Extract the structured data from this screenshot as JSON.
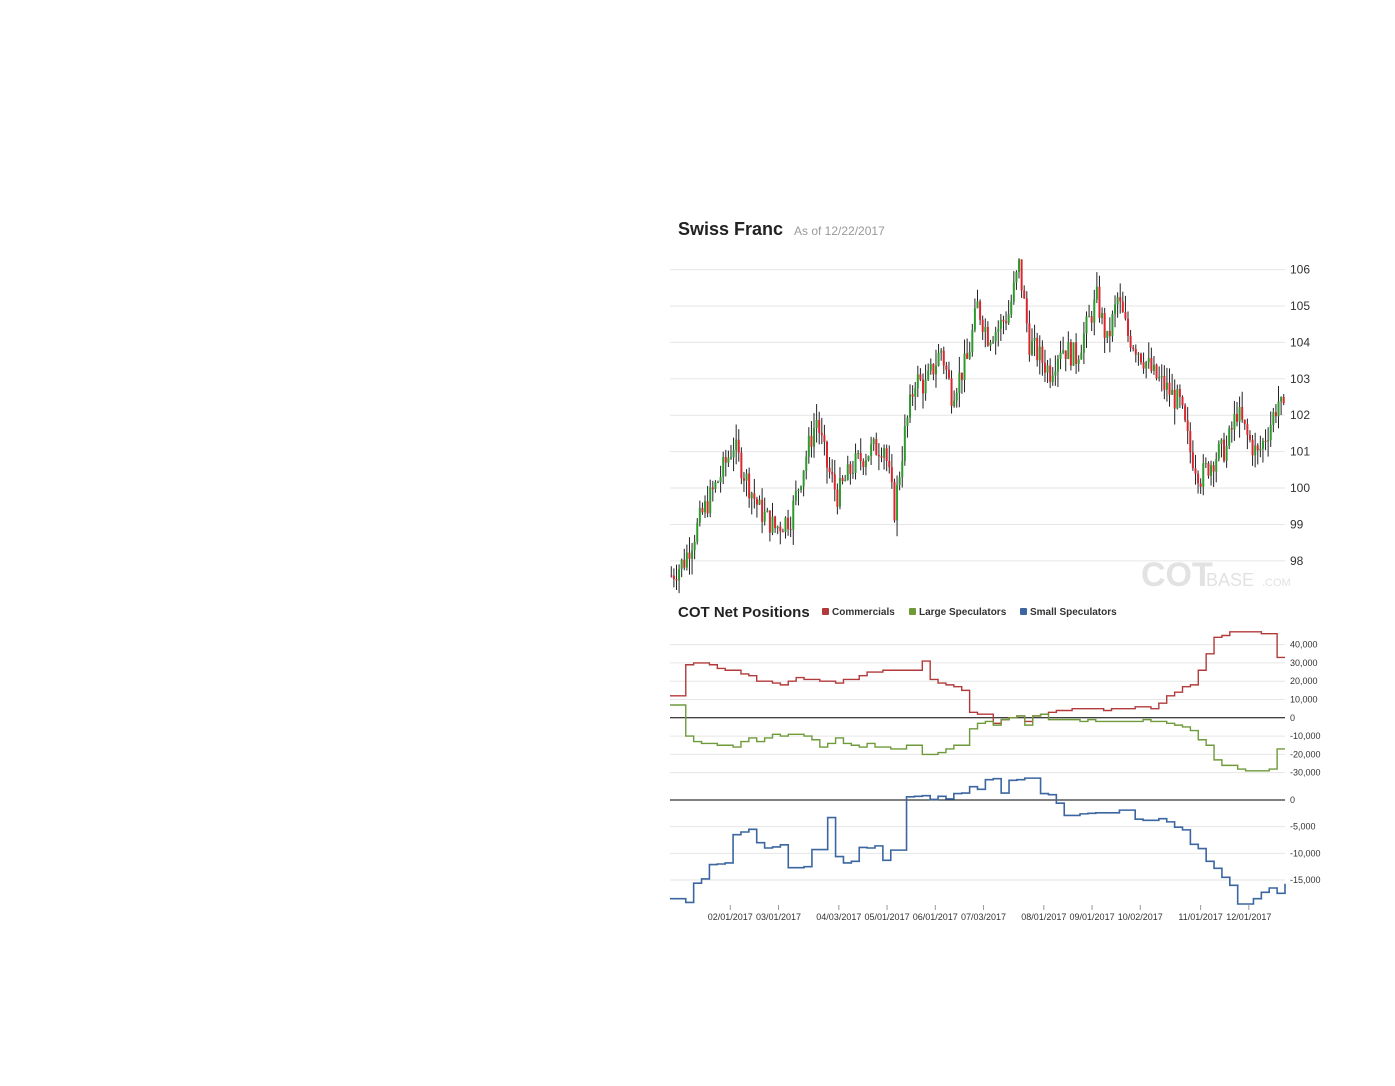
{
  "header": {
    "title": "Swiss Franc",
    "as_of": "As of 12/22/2017"
  },
  "watermark": {
    "main": "COT",
    "suffix": "BASE",
    "tld": ".COM"
  },
  "cot_panel": {
    "title": "COT Net Positions",
    "legend": [
      {
        "label": "Commercials",
        "color": "#b23a3a"
      },
      {
        "label": "Large Speculators",
        "color": "#6f9a3a"
      },
      {
        "label": "Small Speculators",
        "color": "#3b66a0"
      }
    ]
  },
  "colors": {
    "up": "#2e9a2e",
    "down": "#d9262f",
    "wick": "#222222",
    "grid": "#e6e6e6"
  },
  "chart_data": [
    {
      "type": "candlestick",
      "title": "Swiss Franc",
      "subtitle": "As of 12/22/2017",
      "y_ticks": [
        98,
        99,
        100,
        101,
        102,
        103,
        104,
        105,
        106
      ],
      "ylim": [
        97.2,
        106.4
      ],
      "anchors": [
        [
          0,
          97.6
        ],
        [
          5,
          98.0
        ],
        [
          12,
          99.3
        ],
        [
          18,
          100.2
        ],
        [
          24,
          101.2
        ],
        [
          28,
          100.4
        ],
        [
          34,
          99.4
        ],
        [
          40,
          98.9
        ],
        [
          46,
          99.2
        ],
        [
          52,
          100.9
        ],
        [
          56,
          101.9
        ],
        [
          60,
          100.6
        ],
        [
          64,
          99.8
        ],
        [
          70,
          100.6
        ],
        [
          76,
          101.0
        ],
        [
          82,
          101.2
        ],
        [
          86,
          99.4
        ],
        [
          90,
          101.5
        ],
        [
          94,
          103.0
        ],
        [
          98,
          102.8
        ],
        [
          104,
          103.8
        ],
        [
          108,
          102.6
        ],
        [
          114,
          103.5
        ],
        [
          118,
          105.0
        ],
        [
          122,
          104.2
        ],
        [
          126,
          104.4
        ],
        [
          130,
          104.8
        ],
        [
          134,
          106.1
        ],
        [
          138,
          104.0
        ],
        [
          142,
          103.6
        ],
        [
          146,
          103.2
        ],
        [
          150,
          103.9
        ],
        [
          156,
          103.6
        ],
        [
          160,
          104.4
        ],
        [
          164,
          105.2
        ],
        [
          168,
          104.0
        ],
        [
          172,
          105.2
        ],
        [
          176,
          104.2
        ],
        [
          180,
          103.8
        ],
        [
          186,
          103.1
        ],
        [
          190,
          102.8
        ],
        [
          196,
          102.3
        ],
        [
          200,
          101.0
        ],
        [
          204,
          100.3
        ],
        [
          210,
          100.9
        ],
        [
          214,
          101.1
        ],
        [
          218,
          102.1
        ],
        [
          222,
          101.4
        ],
        [
          226,
          100.9
        ],
        [
          230,
          101.6
        ],
        [
          234,
          102.4
        ],
        [
          236,
          102.0
        ]
      ],
      "n_candles": 237
    },
    {
      "type": "step-line",
      "title": "COT Net Positions",
      "x_ticks": [
        "02/01/2017",
        "03/01/2017",
        "04/03/2017",
        "05/01/2017",
        "06/01/2017",
        "07/03/2017",
        "08/01/2017",
        "09/01/2017",
        "10/02/2017",
        "11/01/2017",
        "12/01/2017"
      ],
      "x_tick_weeks": [
        5,
        9,
        14,
        18,
        22,
        26,
        31,
        35,
        39,
        44,
        48
      ],
      "y_ticks": [
        40000,
        30000,
        20000,
        10000,
        0,
        -10000,
        -20000,
        -30000
      ],
      "y_tick_labels": [
        "40,000",
        "30,000",
        "20,000",
        "10,000",
        "0",
        "-10,000",
        "-20,000",
        "-30,000"
      ],
      "ylim": [
        -34000,
        48000
      ],
      "series": [
        {
          "name": "Commercials",
          "color": "#b23a3a",
          "values": [
            12000,
            12000,
            29000,
            30000,
            30000,
            29000,
            27000,
            26000,
            26000,
            24000,
            23000,
            20000,
            20000,
            19000,
            18000,
            20000,
            22000,
            21000,
            21000,
            20000,
            20000,
            19000,
            21000,
            21000,
            23000,
            25000,
            25000,
            26000,
            26000,
            26000,
            26000,
            26000,
            31000,
            21000,
            19000,
            18000,
            17000,
            15000,
            3000,
            2000,
            2000,
            -3000,
            -1000,
            0,
            1000,
            -2000,
            1000,
            2000,
            3000,
            4000,
            4000,
            5000,
            5000,
            5000,
            5000,
            4000,
            5000,
            5000,
            5000,
            6000,
            6000,
            5000,
            8000,
            12000,
            14000,
            17000,
            18000,
            26000,
            35000,
            44000,
            45000,
            47000,
            47000,
            47000,
            47000,
            46000,
            46000,
            33000,
            33000
          ]
        },
        {
          "name": "Large Speculators",
          "color": "#6f9a3a",
          "values": [
            7000,
            7000,
            -10000,
            -13000,
            -14000,
            -14000,
            -15000,
            -15000,
            -16000,
            -13000,
            -11000,
            -13000,
            -11000,
            -9000,
            -10000,
            -9000,
            -9000,
            -10000,
            -12000,
            -16000,
            -14000,
            -11000,
            -14000,
            -15000,
            -16000,
            -14000,
            -16000,
            -16000,
            -17000,
            -17000,
            -15000,
            -15000,
            -20000,
            -20000,
            -19000,
            -17000,
            -15000,
            -15000,
            -6000,
            -3000,
            -2000,
            -4000,
            -1000,
            0,
            1000,
            -4000,
            1000,
            2000,
            -1000,
            -1000,
            -1000,
            -1000,
            -2000,
            -1000,
            -2000,
            -2000,
            -2000,
            -2000,
            -2000,
            -2000,
            -1000,
            -2000,
            -2000,
            -3000,
            -4000,
            -5000,
            -7000,
            -12000,
            -15000,
            -23000,
            -26000,
            -26000,
            -28000,
            -29000,
            -29000,
            -29000,
            -28000,
            -17000,
            -17000
          ]
        },
        {
          "name": "Small Speculators",
          "color": "#3b66a0",
          "values": [
            -18500,
            -18500,
            -19200,
            -15600,
            -14800,
            -12100,
            -12000,
            -11800,
            -6500,
            -6000,
            -5500,
            -8000,
            -9000,
            -8800,
            -8400,
            -12700,
            -12700,
            -12500,
            -9300,
            -9300,
            -3300,
            -10600,
            -11800,
            -11500,
            -8900,
            -9000,
            -8600,
            -11300,
            -9400,
            -9400,
            600,
            700,
            800,
            100,
            700,
            200,
            1200,
            1300,
            2500,
            2000,
            3800,
            4000,
            1300,
            3700,
            3800,
            4100,
            4100,
            1200,
            1000,
            -600,
            -2900,
            -2900,
            -2600,
            -2500,
            -2400,
            -2400,
            -2400,
            -1900,
            -1900,
            -3600,
            -3800,
            -3800,
            -3500,
            -4100,
            -5100,
            -5600,
            -8300,
            -9100,
            -11500,
            -12800,
            -14500,
            -16000,
            -19500,
            -19500,
            -18500,
            -17300,
            -16500,
            -17500,
            -15700
          ]
        }
      ],
      "small_ylim": [
        -19500,
        0
      ],
      "small_y_ticks": [
        0,
        -5000,
        -10000,
        -15000
      ],
      "small_y_tick_labels": [
        "0",
        "-5,000",
        "-10,000",
        "-15,000"
      ]
    }
  ]
}
